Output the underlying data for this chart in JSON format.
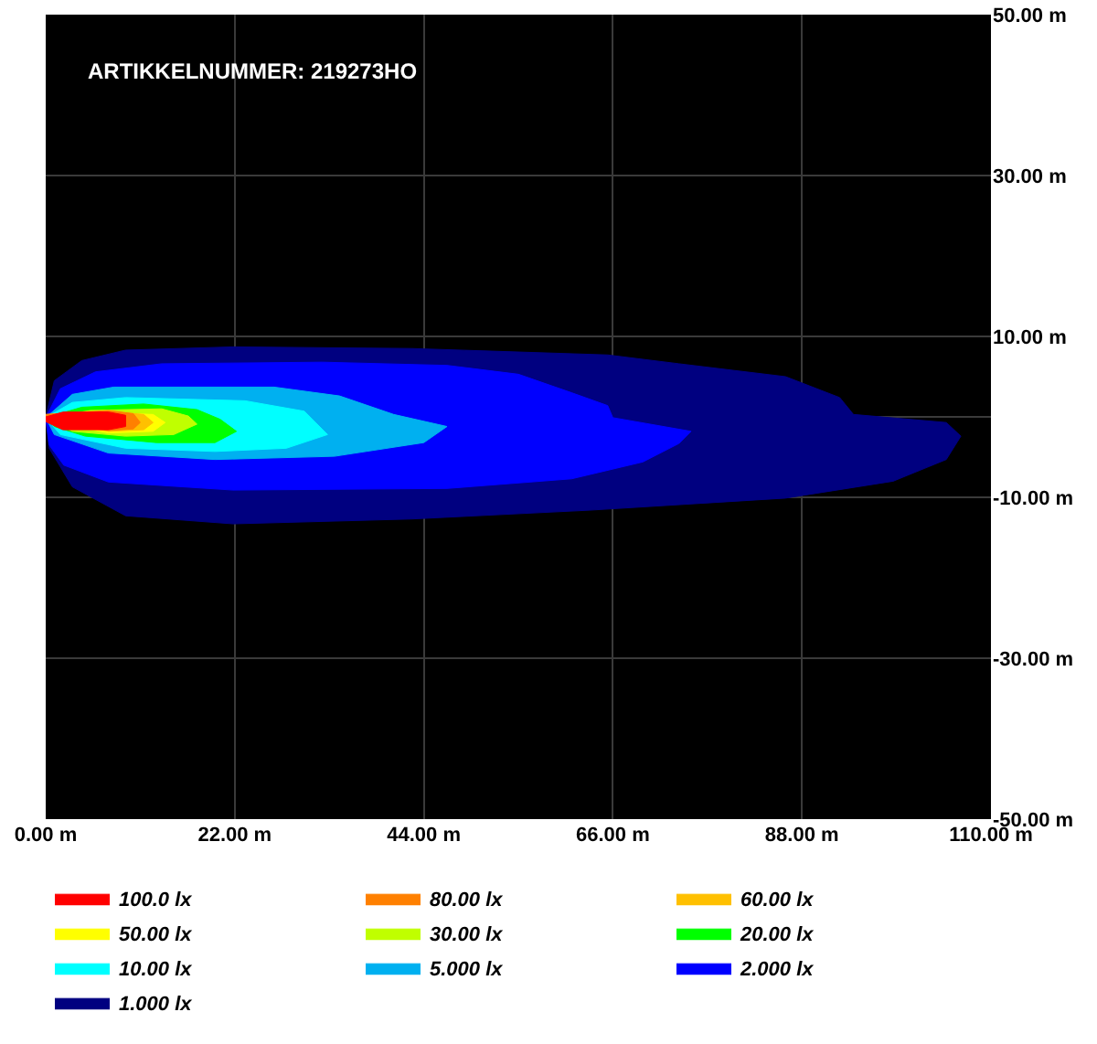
{
  "chart_data": {
    "type": "area",
    "xlim": [
      0,
      110
    ],
    "ylim": [
      -50,
      50
    ],
    "xticks": [
      {
        "value": 0,
        "label": "0.00 m"
      },
      {
        "value": 22,
        "label": "22.00 m"
      },
      {
        "value": 44,
        "label": "44.00 m"
      },
      {
        "value": 66,
        "label": "66.00 m"
      },
      {
        "value": 88,
        "label": "88.00 m"
      },
      {
        "value": 110,
        "label": "110.00 m"
      }
    ],
    "yticks": [
      {
        "value": -50,
        "label": "-50.00 m"
      },
      {
        "value": -30,
        "label": "-30.00 m"
      },
      {
        "value": -10,
        "label": "-10.00 m"
      },
      {
        "value": 10,
        "label": "10.00 m"
      },
      {
        "value": 30,
        "label": "30.00 m"
      },
      {
        "value": 50,
        "label": "50.00 m"
      }
    ],
    "grid": true,
    "legend": "bottom",
    "annotations": [
      "ARTIKKELNUMMER: 219273HO"
    ],
    "series": [
      {
        "name": "100.0 lx",
        "color": "#ff0000",
        "x": [
          0,
          2,
          7.3,
          9.3,
          9.3,
          7.3,
          2,
          0
        ],
        "values": [
          0,
          0.6,
          0.6,
          0.2,
          -1.2,
          -1.6,
          -1.6,
          -0.6
        ]
      },
      {
        "name": "80.00 lx",
        "color": "#ff8000",
        "x": [
          0,
          7.3,
          10.2,
          11,
          10.2,
          7.3,
          0
        ],
        "values": [
          0.3,
          0.8,
          0.4,
          -0.7,
          -1.5,
          -1.7,
          -0.3
        ]
      },
      {
        "name": "60.00 lx",
        "color": "#ffc000",
        "x": [
          0,
          7.3,
          11.4,
          12.5,
          11.4,
          7.3,
          0
        ],
        "values": [
          0.3,
          0.7,
          0.3,
          -0.7,
          -1.6,
          -1.8,
          -0.3
        ]
      },
      {
        "name": "50.00 lx",
        "color": "#ffff00",
        "x": [
          0,
          7.3,
          12.5,
          13.9,
          12.5,
          7.3,
          0
        ],
        "values": [
          0.2,
          0.5,
          0.3,
          -0.7,
          -1.8,
          -2,
          -0.5
        ]
      },
      {
        "name": "30.00 lx",
        "color": "#c0ff00",
        "x": [
          0,
          5.2,
          13.5,
          16.6,
          17.6,
          14.9,
          9.3,
          3.1,
          0
        ],
        "values": [
          -0.1,
          0.8,
          1,
          0.1,
          -0.9,
          -2.2,
          -2.4,
          -1.8,
          -0.1
        ]
      },
      {
        "name": "20.00 lx",
        "color": "#00ff00",
        "x": [
          0,
          4.2,
          11.4,
          17.6,
          20.3,
          22.2,
          19.7,
          12.9,
          4.6,
          1,
          0
        ],
        "values": [
          -0.1,
          1.2,
          1.6,
          0.9,
          -0.3,
          -1.8,
          -3.2,
          -3.2,
          -2.4,
          -1.2,
          -0.1
        ]
      },
      {
        "name": "10.00 lx",
        "color": "#00ffff",
        "x": [
          0,
          3.1,
          9.3,
          23.2,
          30.1,
          32.8,
          28,
          19.7,
          9.3,
          1.7,
          0
        ],
        "values": [
          -0.1,
          1.8,
          2.4,
          2,
          0.7,
          -2.2,
          -3.9,
          -4.3,
          -3.9,
          -2.2,
          -0.1
        ]
      },
      {
        "name": "5.000 lx",
        "color": "#00b0f0",
        "x": [
          0,
          3.1,
          7.9,
          26.6,
          34.2,
          40.5,
          46.7,
          44,
          33.6,
          19.7,
          7.3,
          1,
          0
        ],
        "values": [
          -0.1,
          2.8,
          3.7,
          3.7,
          2.6,
          0.3,
          -1.2,
          -3.2,
          -4.9,
          -5.3,
          -4.5,
          -2.2,
          -0.1
        ]
      },
      {
        "name": "2.000 lx",
        "color": "#0000ff",
        "x": [
          0,
          1.7,
          5.8,
          13.5,
          32.2,
          46.7,
          55,
          61.2,
          65.4,
          66,
          75.1,
          73.7,
          69.5,
          61.2,
          46.7,
          21.8,
          7.3,
          2.1,
          0.4,
          0
        ],
        "values": [
          -0.1,
          3.5,
          5.6,
          6.6,
          6.8,
          6.4,
          5.3,
          3,
          1.4,
          -0.1,
          -1.8,
          -3.3,
          -5.6,
          -7.7,
          -8.9,
          -9.1,
          -8.1,
          -6,
          -3.5,
          -0.1
        ]
      },
      {
        "name": "1.000 lx",
        "color": "#000080",
        "x": [
          0,
          1,
          4.2,
          9.3,
          21.8,
          42.5,
          65.4,
          73.7,
          86.1,
          92.4,
          94,
          104.8,
          106.5,
          104.8,
          98.6,
          86.1,
          63.3,
          42.5,
          21.8,
          9.3,
          3.1,
          0.4,
          0
        ],
        "values": [
          0,
          4.5,
          7,
          8.3,
          8.7,
          8.5,
          7.7,
          6.6,
          5,
          2.4,
          0.3,
          -0.7,
          -2.4,
          -5.3,
          -8,
          -10.1,
          -11.6,
          -12.7,
          -13.3,
          -12.3,
          -8.7,
          -3.9,
          0
        ]
      }
    ]
  }
}
